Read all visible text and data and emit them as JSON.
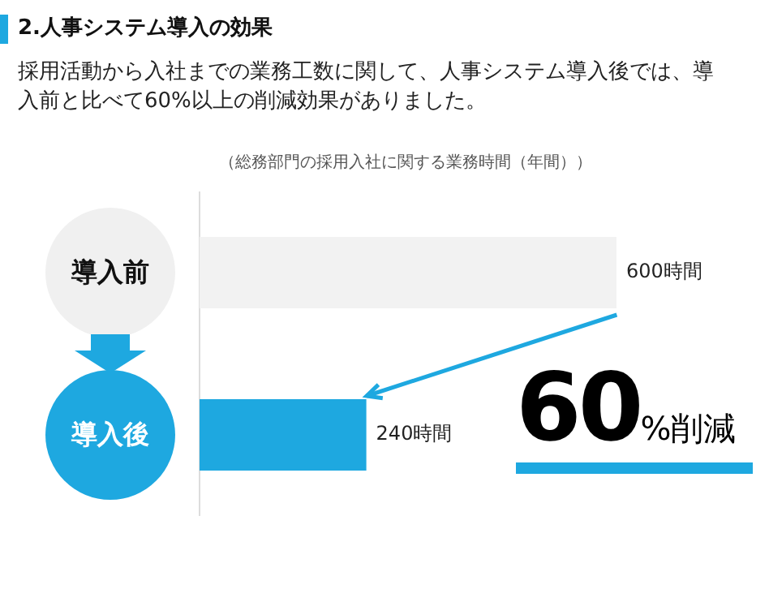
{
  "chart_data": {
    "type": "bar",
    "orientation": "horizontal",
    "title": "2.人事システム導入の効果",
    "subtitle": "採用活動から入社までの業務工数に関して、人事システム導入後では、導入前と比べて60%以上の削減効果がありました。",
    "categories": [
      "導入前",
      "導入後"
    ],
    "values": [
      600,
      240
    ],
    "colors": [
      "#f2f2f2",
      "#1ea8e0"
    ],
    "value_labels": [
      "600時間",
      "240時間"
    ],
    "annotations": [
      "（総務部門の採用入社に関する業務時間（年間））",
      "60%削減"
    ],
    "legend": false
  }
}
